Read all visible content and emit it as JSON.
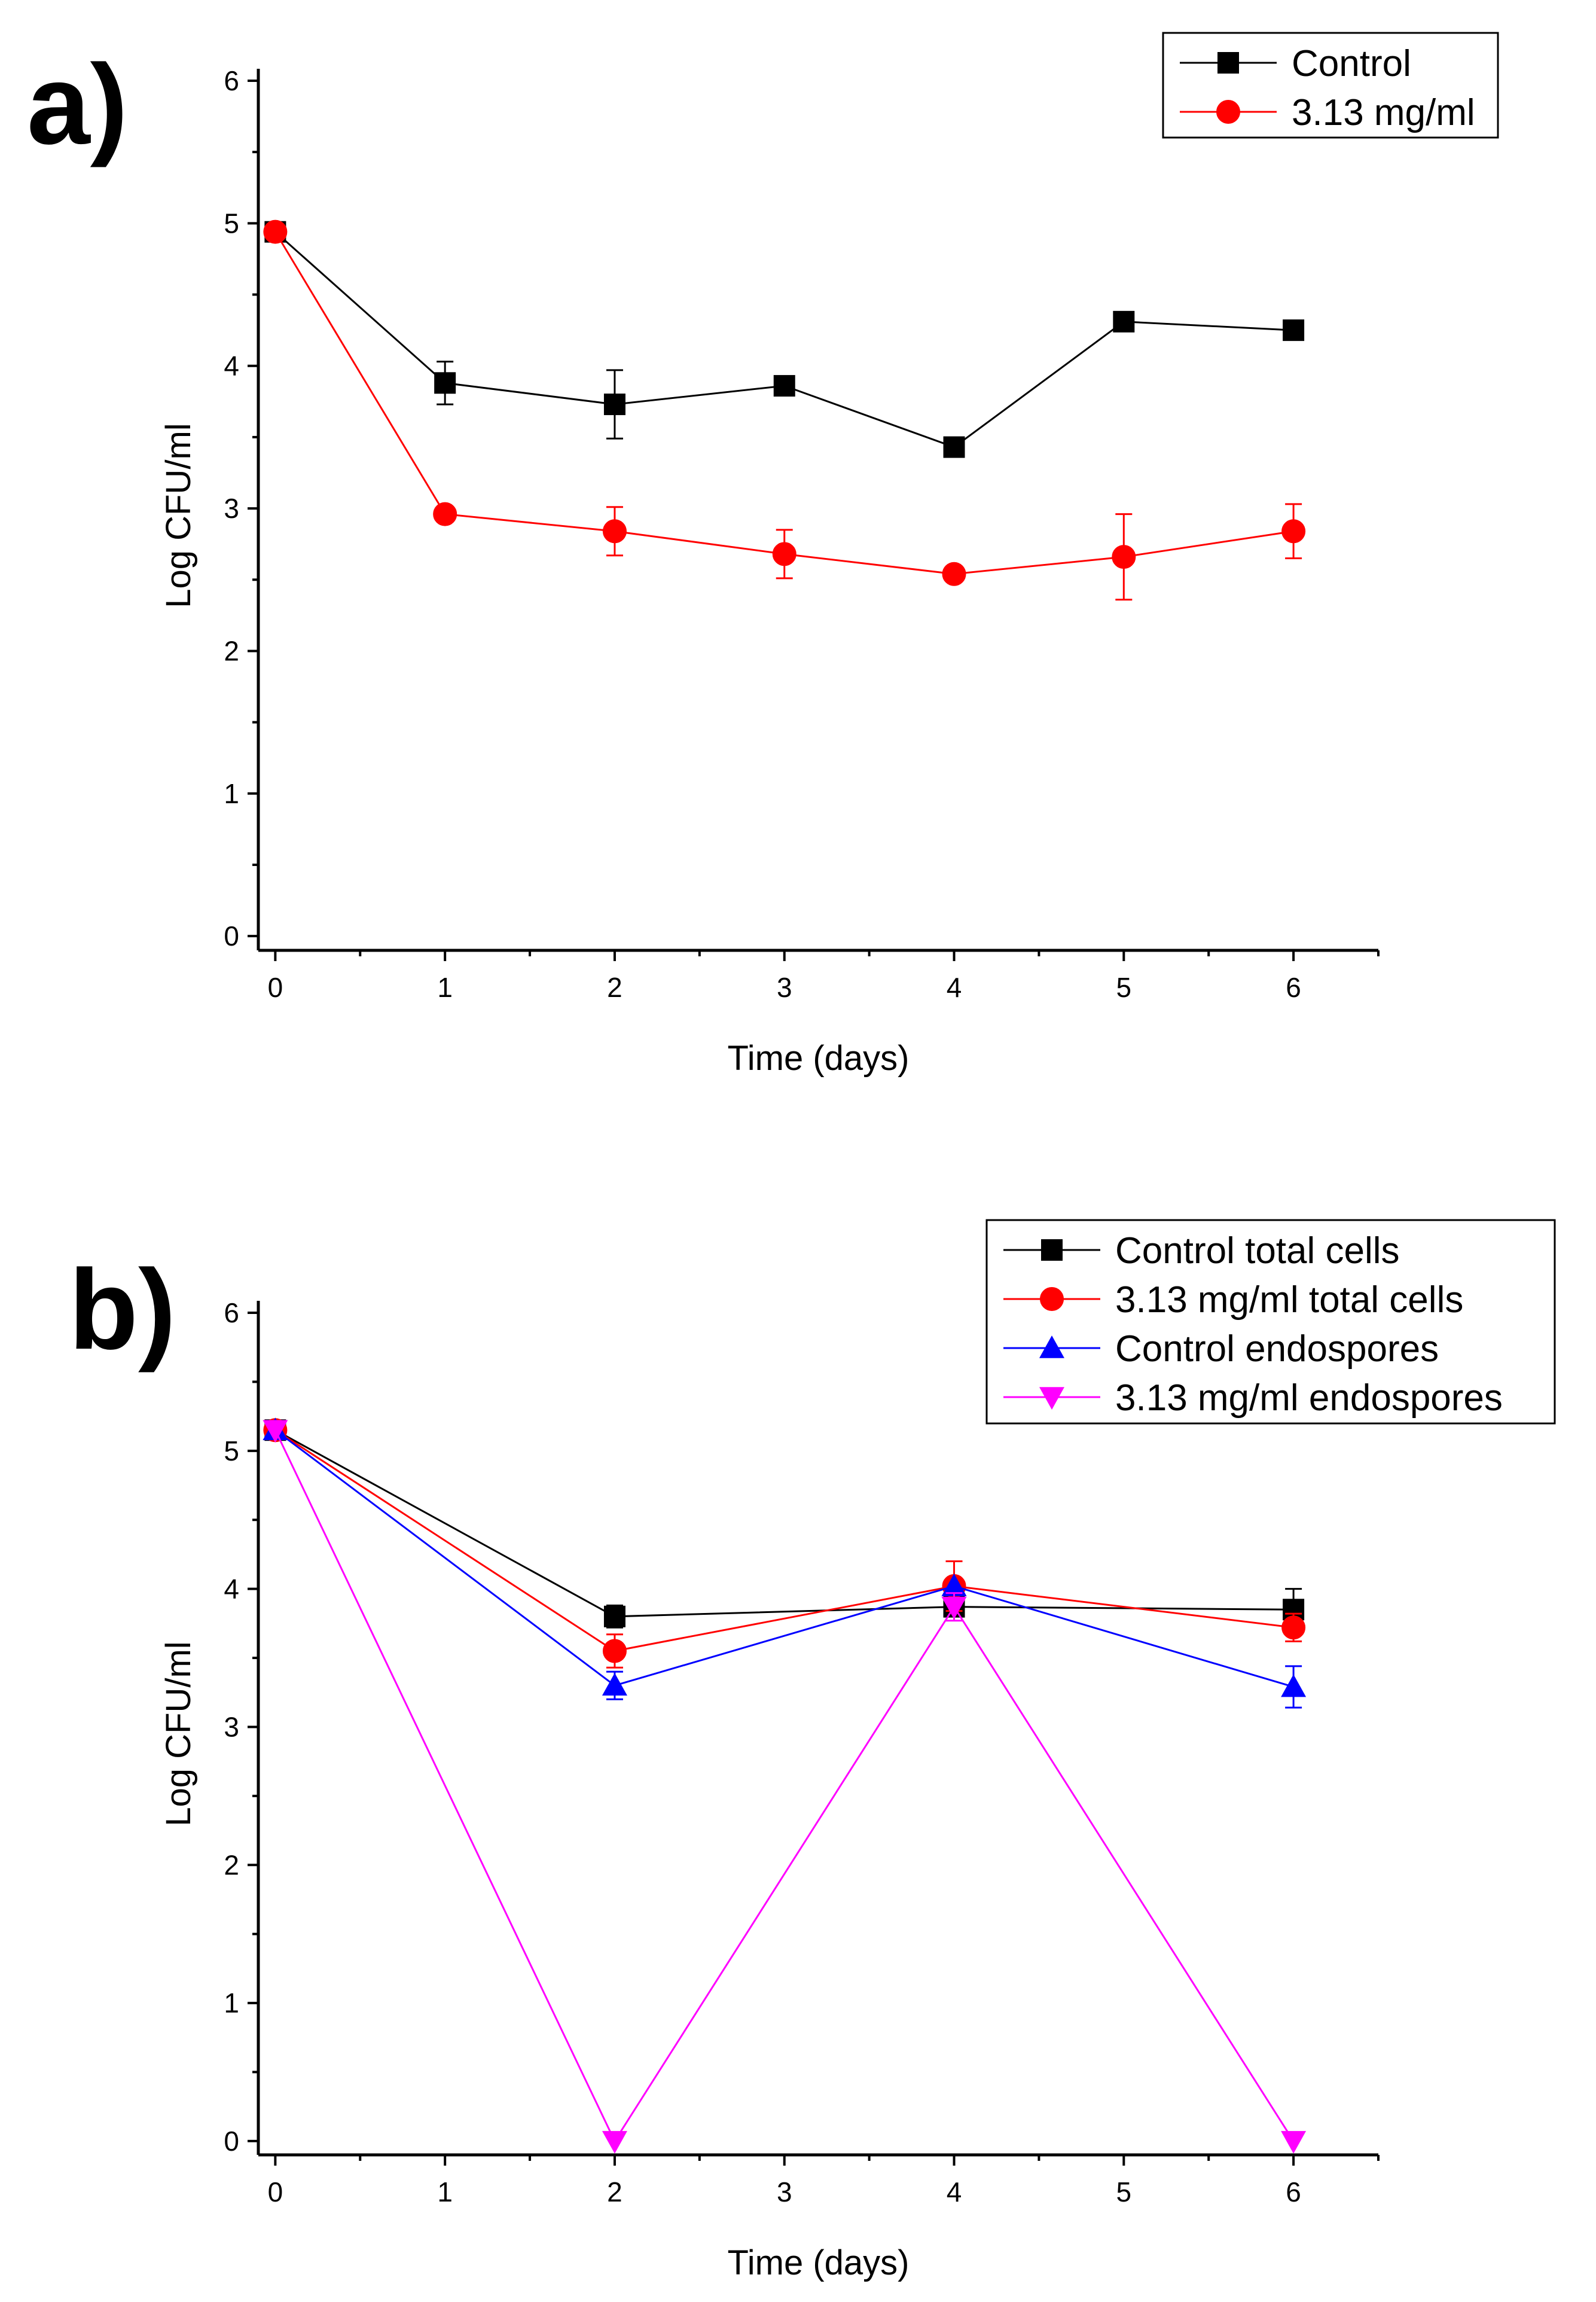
{
  "chart_data": [
    {
      "panel": "a)",
      "type": "line",
      "xlabel": "Time (days)",
      "ylabel": "Log CFU/ml",
      "xlim": [
        -0.1,
        6.5
      ],
      "ylim": [
        -0.1,
        6
      ],
      "xticks": [
        0,
        1,
        2,
        3,
        4,
        5,
        6
      ],
      "yticks": [
        0,
        1,
        2,
        3,
        4,
        5,
        6
      ],
      "legend_position": "top-right",
      "series": [
        {
          "name": "Control",
          "color": "#000000",
          "marker": "square",
          "x": [
            0,
            1,
            2,
            3,
            4,
            5,
            6
          ],
          "y": [
            4.94,
            3.88,
            3.73,
            3.86,
            3.43,
            4.31,
            4.25
          ],
          "err": [
            0,
            0.15,
            0.24,
            0,
            0,
            0,
            0
          ]
        },
        {
          "name": "3.13 mg/ml",
          "color": "#ff0000",
          "marker": "circle",
          "x": [
            0,
            1,
            2,
            3,
            4,
            5,
            6
          ],
          "y": [
            4.94,
            2.96,
            2.84,
            2.68,
            2.54,
            2.66,
            2.84
          ],
          "err": [
            0,
            0,
            0.17,
            0.17,
            0,
            0.3,
            0.19
          ]
        }
      ]
    },
    {
      "panel": "b)",
      "type": "line",
      "xlabel": "Time (days)",
      "ylabel": "Log CFU/ml",
      "xlim": [
        -0.1,
        6.5
      ],
      "ylim": [
        -0.1,
        6
      ],
      "xticks": [
        0,
        1,
        2,
        3,
        4,
        5,
        6
      ],
      "yticks": [
        0,
        1,
        2,
        3,
        4,
        5,
        6
      ],
      "legend_position": "top-right",
      "series": [
        {
          "name": "Control total cells",
          "color": "#000000",
          "marker": "square",
          "x": [
            0,
            2,
            4,
            6
          ],
          "y": [
            5.15,
            3.8,
            3.87,
            3.85
          ],
          "err": [
            0,
            0.08,
            0,
            0.15
          ]
        },
        {
          "name": "3.13 mg/ml total cells",
          "color": "#ff0000",
          "marker": "circle",
          "x": [
            0,
            2,
            4,
            6
          ],
          "y": [
            5.15,
            3.55,
            4.02,
            3.72
          ],
          "err": [
            0,
            0.12,
            0.18,
            0.1
          ]
        },
        {
          "name": "Control endospores",
          "color": "#0000ff",
          "marker": "triangle-up",
          "x": [
            0,
            2,
            4,
            6
          ],
          "y": [
            5.15,
            3.3,
            4.02,
            3.29
          ],
          "err": [
            0,
            0.1,
            0,
            0.15
          ]
        },
        {
          "name": "3.13 mg/ml endospores",
          "color": "#ff00ff",
          "marker": "triangle-down",
          "x": [
            0,
            2,
            4,
            6
          ],
          "y": [
            5.15,
            0,
            3.87,
            0
          ],
          "err": [
            0,
            0,
            0.1,
            0
          ]
        }
      ]
    }
  ]
}
